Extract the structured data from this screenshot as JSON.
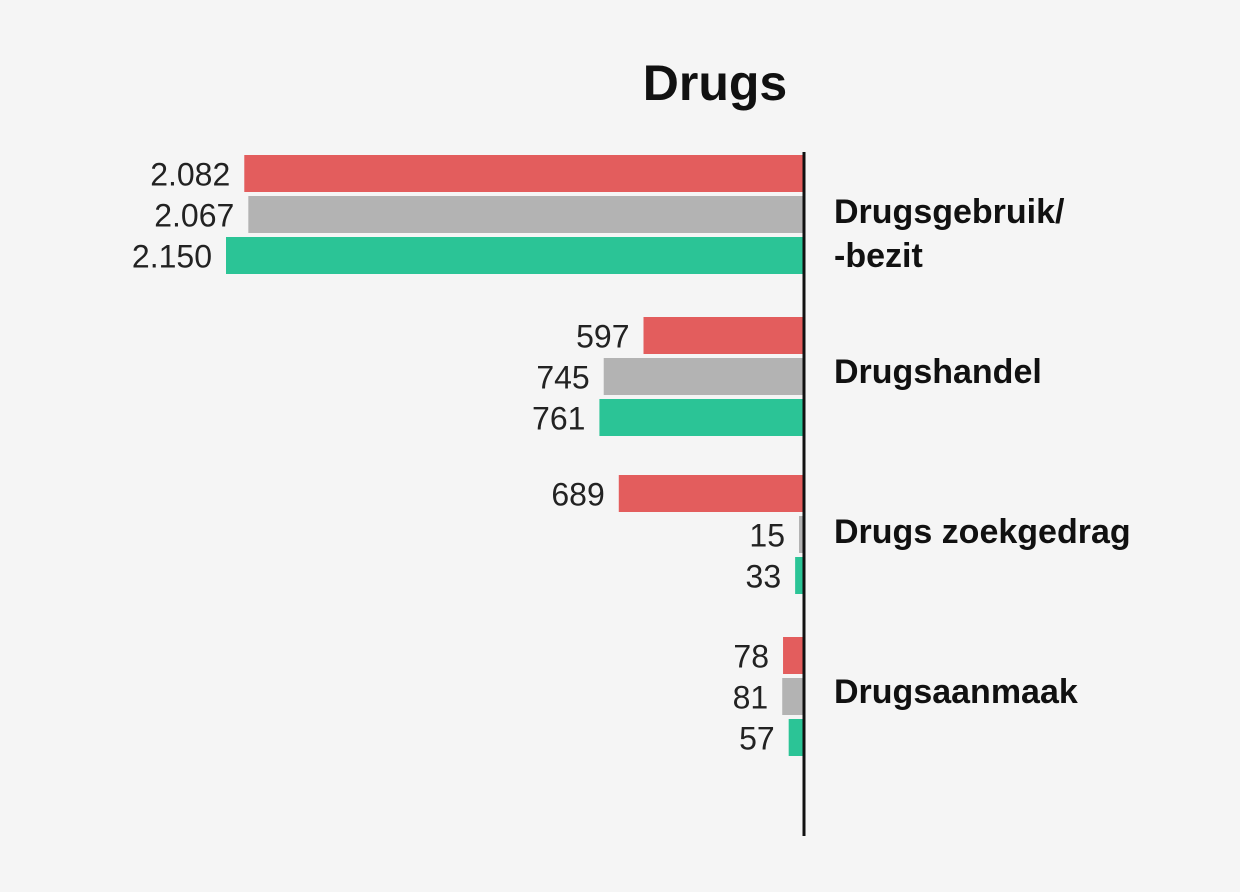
{
  "chart_data": {
    "type": "bar",
    "orientation": "horizontal",
    "title": "Drugs",
    "categories": [
      "Drugsgebruik/\n-bezit",
      "Drugshandel",
      "Drugs zoekgedrag",
      "Drugsaanmaak"
    ],
    "series": [
      {
        "color": "#e35d5d",
        "values": [
          2082,
          597,
          689,
          78
        ],
        "labels": [
          "2.082",
          "597",
          "689",
          "78"
        ]
      },
      {
        "color": "#b3b3b3",
        "values": [
          2067,
          745,
          15,
          81
        ],
        "labels": [
          "2.067",
          "745",
          "15",
          "81"
        ]
      },
      {
        "color": "#2bc496",
        "values": [
          2150,
          761,
          33,
          57
        ],
        "labels": [
          "2.150",
          "761",
          "33",
          "57"
        ]
      }
    ],
    "xlim": [
      0,
      2150
    ],
    "grid": false,
    "legend": "none"
  }
}
